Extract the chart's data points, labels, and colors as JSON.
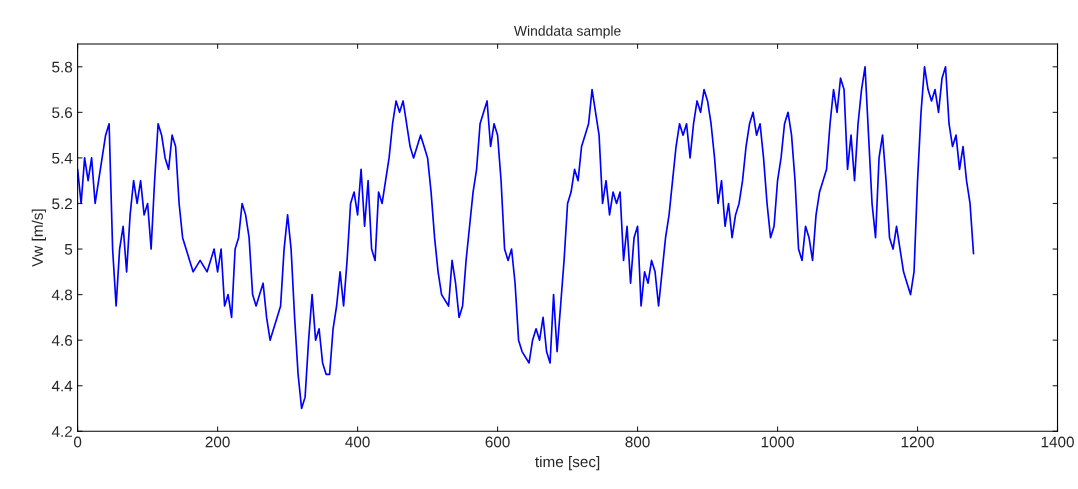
{
  "chart_data": {
    "type": "line",
    "title": "Winddata sample",
    "xlabel": "time [sec]",
    "ylabel": "Vw [m/s]",
    "xlim": [
      0,
      1400
    ],
    "xticks": [
      0,
      200,
      400,
      600,
      800,
      1000,
      1200,
      1400
    ],
    "ylim": [
      4.2,
      5.9
    ],
    "yticks": [
      4.2,
      4.4,
      4.6,
      4.8,
      5,
      5.2,
      5.4,
      5.6,
      5.8
    ],
    "grid": false,
    "x": [
      0,
      5,
      10,
      15,
      20,
      25,
      30,
      35,
      40,
      45,
      50,
      55,
      60,
      65,
      70,
      75,
      80,
      85,
      90,
      95,
      100,
      105,
      110,
      115,
      120,
      125,
      130,
      135,
      140,
      145,
      150,
      155,
      160,
      165,
      175,
      185,
      195,
      200,
      205,
      210,
      215,
      220,
      225,
      230,
      235,
      240,
      245,
      250,
      255,
      260,
      265,
      270,
      275,
      280,
      285,
      290,
      295,
      300,
      305,
      310,
      315,
      320,
      325,
      330,
      335,
      340,
      345,
      350,
      355,
      360,
      365,
      370,
      375,
      380,
      385,
      390,
      395,
      400,
      405,
      410,
      415,
      420,
      425,
      430,
      435,
      440,
      445,
      450,
      455,
      460,
      465,
      470,
      475,
      480,
      490,
      495,
      500,
      505,
      510,
      515,
      520,
      530,
      535,
      540,
      545,
      550,
      555,
      560,
      565,
      570,
      575,
      580,
      585,
      590,
      595,
      600,
      605,
      610,
      615,
      620,
      625,
      630,
      635,
      645,
      650,
      655,
      660,
      665,
      670,
      675,
      680,
      685,
      690,
      695,
      700,
      705,
      710,
      715,
      720,
      725,
      730,
      735,
      740,
      745,
      750,
      755,
      760,
      765,
      770,
      775,
      780,
      785,
      790,
      795,
      800,
      805,
      810,
      815,
      820,
      825,
      830,
      835,
      840,
      845,
      850,
      855,
      860,
      865,
      870,
      875,
      880,
      885,
      890,
      895,
      900,
      905,
      910,
      915,
      920,
      925,
      930,
      935,
      940,
      945,
      950,
      955,
      960,
      965,
      970,
      975,
      980,
      985,
      990,
      995,
      1000,
      1005,
      1010,
      1015,
      1020,
      1025,
      1030,
      1035,
      1040,
      1045,
      1050,
      1055,
      1060,
      1065,
      1070,
      1075,
      1080,
      1085,
      1090,
      1095,
      1100,
      1105,
      1110,
      1115,
      1120,
      1125,
      1130,
      1135,
      1140,
      1145,
      1150,
      1155,
      1160,
      1165,
      1170,
      1175,
      1180,
      1185,
      1190,
      1195,
      1200,
      1205,
      1210,
      1215,
      1220,
      1225,
      1230,
      1235,
      1240,
      1245,
      1250,
      1255,
      1260,
      1265,
      1270,
      1275,
      1280
    ],
    "series": [
      {
        "color": "#0000ff",
        "values": [
          5.35,
          5.2,
          5.4,
          5.3,
          5.4,
          5.2,
          5.3,
          5.4,
          5.5,
          5.55,
          5.0,
          4.75,
          5.0,
          5.1,
          4.9,
          5.15,
          5.3,
          5.2,
          5.3,
          5.15,
          5.2,
          5.0,
          5.3,
          5.55,
          5.5,
          5.4,
          5.35,
          5.5,
          5.45,
          5.2,
          5.05,
          5.0,
          4.95,
          4.9,
          4.95,
          4.9,
          5.0,
          4.9,
          5.0,
          4.75,
          4.8,
          4.7,
          5.0,
          5.05,
          5.2,
          5.15,
          5.05,
          4.8,
          4.75,
          4.8,
          4.85,
          4.7,
          4.6,
          4.65,
          4.7,
          4.75,
          5.0,
          5.15,
          5.0,
          4.7,
          4.45,
          4.3,
          4.35,
          4.6,
          4.8,
          4.6,
          4.65,
          4.5,
          4.45,
          4.45,
          4.65,
          4.75,
          4.9,
          4.75,
          4.95,
          5.2,
          5.25,
          5.15,
          5.35,
          5.1,
          5.3,
          5.0,
          4.95,
          5.25,
          5.2,
          5.3,
          5.4,
          5.55,
          5.65,
          5.6,
          5.65,
          5.55,
          5.45,
          5.4,
          5.5,
          5.45,
          5.4,
          5.25,
          5.05,
          4.9,
          4.8,
          4.75,
          4.95,
          4.85,
          4.7,
          4.75,
          4.95,
          5.1,
          5.25,
          5.35,
          5.55,
          5.6,
          5.65,
          5.45,
          5.55,
          5.5,
          5.3,
          5.0,
          4.95,
          5.0,
          4.85,
          4.6,
          4.55,
          4.5,
          4.6,
          4.65,
          4.6,
          4.7,
          4.55,
          4.5,
          4.8,
          4.55,
          4.75,
          4.95,
          5.2,
          5.25,
          5.35,
          5.3,
          5.45,
          5.5,
          5.55,
          5.7,
          5.6,
          5.5,
          5.2,
          5.3,
          5.15,
          5.25,
          5.2,
          5.25,
          4.95,
          5.1,
          4.85,
          5.05,
          5.1,
          4.75,
          4.9,
          4.85,
          4.95,
          4.9,
          4.75,
          4.9,
          5.05,
          5.15,
          5.3,
          5.45,
          5.55,
          5.5,
          5.55,
          5.4,
          5.55,
          5.65,
          5.6,
          5.7,
          5.65,
          5.55,
          5.4,
          5.2,
          5.3,
          5.1,
          5.2,
          5.05,
          5.15,
          5.2,
          5.3,
          5.45,
          5.55,
          5.6,
          5.5,
          5.55,
          5.4,
          5.2,
          5.05,
          5.1,
          5.3,
          5.4,
          5.55,
          5.6,
          5.5,
          5.3,
          5.0,
          4.95,
          5.1,
          5.05,
          4.95,
          5.15,
          5.25,
          5.3,
          5.35,
          5.55,
          5.7,
          5.6,
          5.75,
          5.7,
          5.35,
          5.5,
          5.3,
          5.55,
          5.7,
          5.8,
          5.5,
          5.2,
          5.05,
          5.4,
          5.5,
          5.3,
          5.05,
          5.0,
          5.1,
          5.0,
          4.9,
          4.85,
          4.8,
          4.9,
          5.3,
          5.6,
          5.8,
          5.7,
          5.65,
          5.7,
          5.6,
          5.75,
          5.8,
          5.55,
          5.45,
          5.5,
          5.35,
          5.45,
          5.3,
          5.2,
          4.98
        ]
      }
    ]
  }
}
